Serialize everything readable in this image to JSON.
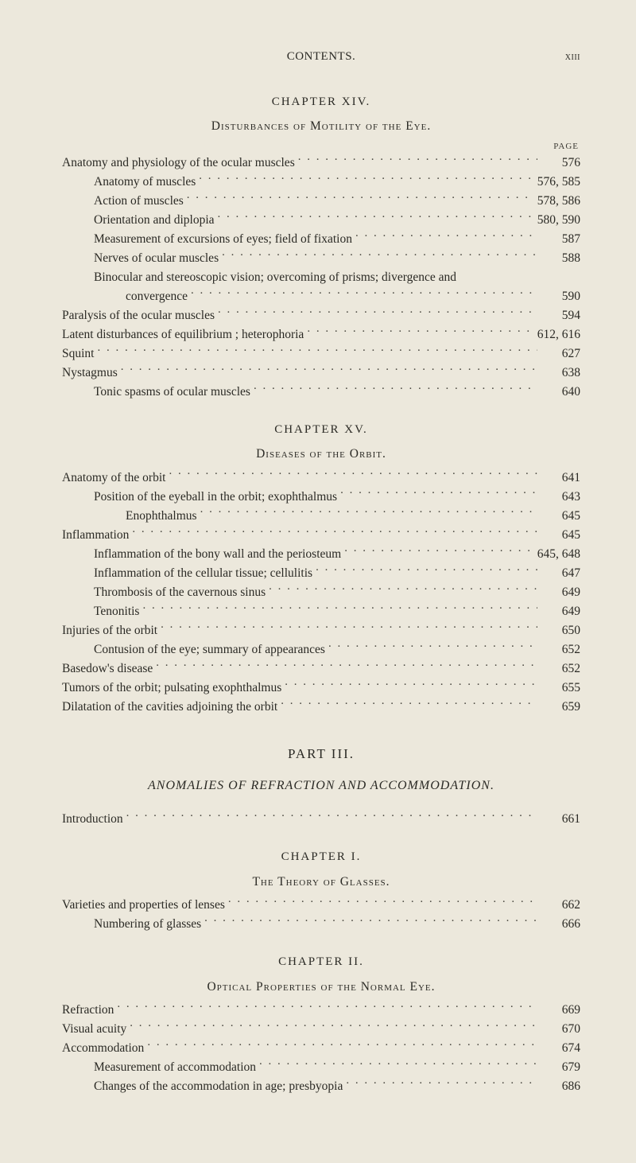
{
  "runningHead": {
    "title": "CONTENTS.",
    "folio": "xiii"
  },
  "pageLabelWord": "PAGE",
  "chapter14": {
    "title": "CHAPTER XIV.",
    "subtitle": "Disturbances of Motility of the Eye.",
    "entries": [
      {
        "indent": 0,
        "label": "Anatomy and physiology of the ocular muscles",
        "page": "576"
      },
      {
        "indent": 1,
        "label": "Anatomy of muscles",
        "page": "576, 585"
      },
      {
        "indent": 1,
        "label": "Action of muscles",
        "page": "578, 586"
      },
      {
        "indent": 1,
        "label": "Orientation and diplopia",
        "page": "580, 590"
      },
      {
        "indent": 1,
        "label": "Measurement of excursions of eyes; field of fixation",
        "page": "587"
      },
      {
        "indent": 1,
        "label": "Nerves of ocular muscles",
        "page": "588"
      },
      {
        "indent": 1,
        "label": "Binocular and stereoscopic vision; overcoming of prisms; divergence and",
        "continuation": true
      },
      {
        "indent": 2,
        "label": "convergence",
        "page": "590"
      },
      {
        "indent": 0,
        "label": "Paralysis of the ocular muscles",
        "page": "594"
      },
      {
        "indent": 0,
        "label": "Latent disturbances of equilibrium ; heterophoria",
        "page": "612, 616"
      },
      {
        "indent": 0,
        "label": "Squint",
        "page": "627"
      },
      {
        "indent": 0,
        "label": "Nystagmus",
        "page": "638"
      },
      {
        "indent": 1,
        "label": "Tonic spasms of ocular muscles",
        "page": "640"
      }
    ]
  },
  "chapter15": {
    "title": "CHAPTER XV.",
    "subtitle": "Diseases of the Orbit.",
    "entries": [
      {
        "indent": 0,
        "label": "Anatomy of the orbit",
        "page": "641"
      },
      {
        "indent": 1,
        "label": "Position of the eyeball in the orbit; exophthalmus",
        "page": "643"
      },
      {
        "indent": 2,
        "label": "Enophthalmus",
        "page": "645"
      },
      {
        "indent": 0,
        "label": "Inflammation",
        "page": "645"
      },
      {
        "indent": 1,
        "label": "Inflammation of the bony wall and the periosteum",
        "page": "645, 648"
      },
      {
        "indent": 1,
        "label": "Inflammation of the cellular tissue; cellulitis",
        "page": "647"
      },
      {
        "indent": 1,
        "label": "Thrombosis of the cavernous sinus",
        "page": "649"
      },
      {
        "indent": 1,
        "label": "Tenonitis",
        "page": "649"
      },
      {
        "indent": 0,
        "label": "Injuries of the orbit",
        "page": "650"
      },
      {
        "indent": 1,
        "label": "Contusion of the eye; summary of appearances",
        "page": "652"
      },
      {
        "indent": 0,
        "label": "Basedow's disease",
        "page": "652"
      },
      {
        "indent": 0,
        "label": "Tumors of the orbit; pulsating exophthalmus",
        "page": "655"
      },
      {
        "indent": 0,
        "label": "Dilatation of the cavities adjoining the orbit",
        "page": "659"
      }
    ]
  },
  "part3": {
    "title": "PART III.",
    "subtitle": "ANOMALIES OF REFRACTION AND ACCOMMODATION.",
    "intro": {
      "label": "Introduction",
      "page": "661"
    }
  },
  "chapterI": {
    "title": "CHAPTER I.",
    "subtitle": "The Theory of Glasses.",
    "entries": [
      {
        "indent": 0,
        "label": "Varieties and properties of lenses",
        "page": "662"
      },
      {
        "indent": 1,
        "label": "Numbering of glasses",
        "page": "666"
      }
    ]
  },
  "chapterII": {
    "title": "CHAPTER II.",
    "subtitle": "Optical Properties of the Normal Eye.",
    "entries": [
      {
        "indent": 0,
        "label": "Refraction",
        "page": "669"
      },
      {
        "indent": 0,
        "label": "Visual acuity",
        "page": "670"
      },
      {
        "indent": 0,
        "label": "Accommodation",
        "page": "674"
      },
      {
        "indent": 1,
        "label": "Measurement of accommodation",
        "page": "679"
      },
      {
        "indent": 1,
        "label": "Changes of the accommodation in age; presbyopia",
        "page": "686"
      }
    ]
  }
}
